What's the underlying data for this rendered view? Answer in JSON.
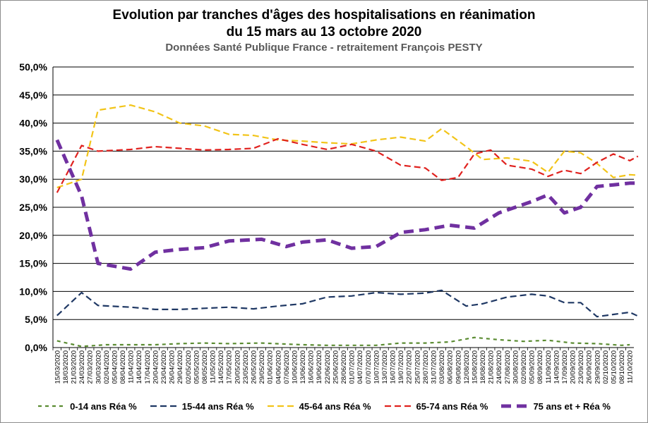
{
  "chart_data": {
    "type": "line",
    "title": "Evolution par tranches d'âges des hospitalisations en réanimation",
    "title_line2": "du 15 mars au 13 octobre 2020",
    "subtitle": "Données Santé Publique France - retraitement François PESTY",
    "ylim": [
      0,
      50
    ],
    "yticks": [
      "0,0%",
      "5,0%",
      "10,0%",
      "15,0%",
      "20,0%",
      "25,0%",
      "30,0%",
      "35,0%",
      "40,0%",
      "45,0%",
      "50,0%"
    ],
    "grid": true,
    "legend_position": "bottom",
    "categories": [
      "15/03/2020",
      "18/03/2020",
      "21/03/2020",
      "24/03/2020",
      "27/03/2020",
      "30/03/2020",
      "02/04/2020",
      "05/04/2020",
      "08/04/2020",
      "11/04/2020",
      "14/04/2020",
      "17/04/2020",
      "20/04/2020",
      "23/04/2020",
      "26/04/2020",
      "29/04/2020",
      "02/05/2020",
      "05/05/2020",
      "08/05/2020",
      "11/05/2020",
      "14/05/2020",
      "17/05/2020",
      "20/05/2020",
      "23/05/2020",
      "26/05/2020",
      "29/05/2020",
      "01/06/2020",
      "04/06/2020",
      "07/06/2020",
      "10/06/2020",
      "13/06/2020",
      "16/06/2020",
      "19/06/2020",
      "22/06/2020",
      "25/06/2020",
      "28/06/2020",
      "01/07/2020",
      "04/07/2020",
      "07/07/2020",
      "10/07/2020",
      "13/07/2020",
      "16/07/2020",
      "19/07/2020",
      "22/07/2020",
      "25/07/2020",
      "28/07/2020",
      "31/07/2020",
      "03/08/2020",
      "06/08/2020",
      "09/08/2020",
      "12/08/2020",
      "15/08/2020",
      "18/08/2020",
      "21/08/2020",
      "24/08/2020",
      "27/08/2020",
      "30/08/2020",
      "02/09/2020",
      "05/09/2020",
      "08/09/2020",
      "11/09/2020",
      "14/09/2020",
      "17/09/2020",
      "20/09/2020",
      "23/09/2020",
      "26/09/2020",
      "29/09/2020",
      "02/10/2020",
      "05/10/2020",
      "08/10/2020",
      "11/10/2020"
    ],
    "series": [
      {
        "name": "0-14 ans Réa %",
        "color": "#5b8c32",
        "dash": "5,5",
        "width": 2.2,
        "points": [
          [
            0,
            1.2
          ],
          [
            3,
            0.2
          ],
          [
            6,
            0.5
          ],
          [
            12,
            0.5
          ],
          [
            15,
            0.7
          ],
          [
            18,
            0.8
          ],
          [
            21,
            0.7
          ],
          [
            25,
            0.8
          ],
          [
            30,
            0.5
          ],
          [
            33,
            0.4
          ],
          [
            36,
            0.4
          ],
          [
            39,
            0.4
          ],
          [
            42,
            0.8
          ],
          [
            45,
            0.8
          ],
          [
            48,
            1.0
          ],
          [
            51,
            1.8
          ],
          [
            54,
            1.4
          ],
          [
            57,
            1.1
          ],
          [
            60,
            1.3
          ],
          [
            63,
            0.8
          ],
          [
            66,
            0.7
          ],
          [
            69,
            0.4
          ],
          [
            70,
            0.5
          ]
        ]
      },
      {
        "name": "15-44 ans Réa %",
        "color": "#1f3864",
        "dash": "9,5",
        "width": 2.2,
        "points": [
          [
            0,
            5.7
          ],
          [
            3,
            9.8
          ],
          [
            5,
            7.5
          ],
          [
            9,
            7.2
          ],
          [
            12,
            6.8
          ],
          [
            15,
            6.8
          ],
          [
            18,
            7.0
          ],
          [
            21,
            7.2
          ],
          [
            24,
            6.9
          ],
          [
            27,
            7.4
          ],
          [
            30,
            7.8
          ],
          [
            33,
            9.0
          ],
          [
            36,
            9.2
          ],
          [
            39,
            9.8
          ],
          [
            42,
            9.5
          ],
          [
            45,
            9.7
          ],
          [
            47,
            10.2
          ],
          [
            50,
            7.4
          ],
          [
            52,
            7.8
          ],
          [
            55,
            9.0
          ],
          [
            58,
            9.5
          ],
          [
            60,
            9.2
          ],
          [
            62,
            8.0
          ],
          [
            64,
            8.0
          ],
          [
            66,
            5.5
          ],
          [
            68,
            5.9
          ],
          [
            70,
            6.3
          ],
          [
            71,
            5.6
          ]
        ]
      },
      {
        "name": "45-64 ans Réa %",
        "color": "#f2c418",
        "dash": "9,5",
        "width": 2.2,
        "points": [
          [
            0,
            28.5
          ],
          [
            3,
            30.0
          ],
          [
            5,
            42.3
          ],
          [
            9,
            43.2
          ],
          [
            12,
            42.0
          ],
          [
            15,
            40.0
          ],
          [
            18,
            39.5
          ],
          [
            21,
            38.0
          ],
          [
            24,
            37.8
          ],
          [
            27,
            37.0
          ],
          [
            30,
            36.8
          ],
          [
            33,
            36.5
          ],
          [
            36,
            36.3
          ],
          [
            39,
            37.0
          ],
          [
            42,
            37.5
          ],
          [
            45,
            36.8
          ],
          [
            47,
            39.0
          ],
          [
            50,
            35.8
          ],
          [
            52,
            33.5
          ],
          [
            55,
            33.8
          ],
          [
            58,
            33.2
          ],
          [
            60,
            31.2
          ],
          [
            62,
            35.0
          ],
          [
            64,
            34.7
          ],
          [
            66,
            32.8
          ],
          [
            68,
            30.3
          ],
          [
            70,
            30.8
          ],
          [
            71,
            30.7
          ]
        ]
      },
      {
        "name": "65-74 ans Réa %",
        "color": "#e0221f",
        "dash": "9,5",
        "width": 2.2,
        "points": [
          [
            0,
            27.6
          ],
          [
            3,
            36.0
          ],
          [
            5,
            35.0
          ],
          [
            9,
            35.3
          ],
          [
            12,
            35.8
          ],
          [
            15,
            35.5
          ],
          [
            18,
            35.2
          ],
          [
            21,
            35.3
          ],
          [
            24,
            35.5
          ],
          [
            27,
            37.2
          ],
          [
            30,
            36.2
          ],
          [
            33,
            35.3
          ],
          [
            36,
            36.2
          ],
          [
            39,
            35.0
          ],
          [
            42,
            32.5
          ],
          [
            45,
            32.0
          ],
          [
            47,
            29.8
          ],
          [
            49,
            30.3
          ],
          [
            51,
            34.5
          ],
          [
            53,
            35.2
          ],
          [
            55,
            32.5
          ],
          [
            58,
            31.8
          ],
          [
            60,
            30.5
          ],
          [
            62,
            31.6
          ],
          [
            64,
            31.0
          ],
          [
            66,
            33.0
          ],
          [
            68,
            34.5
          ],
          [
            70,
            33.3
          ],
          [
            71,
            34.1
          ]
        ]
      },
      {
        "name": "75 ans et + Réa %",
        "color": "#7030a0",
        "dash": "14,8",
        "width": 5,
        "points": [
          [
            0,
            37.0
          ],
          [
            3,
            27.0
          ],
          [
            5,
            15.0
          ],
          [
            9,
            14.0
          ],
          [
            12,
            17.0
          ],
          [
            15,
            17.5
          ],
          [
            18,
            17.8
          ],
          [
            21,
            19.0
          ],
          [
            25,
            19.3
          ],
          [
            28,
            18.0
          ],
          [
            30,
            18.8
          ],
          [
            33,
            19.2
          ],
          [
            36,
            17.7
          ],
          [
            39,
            18.0
          ],
          [
            42,
            20.5
          ],
          [
            45,
            21.0
          ],
          [
            48,
            21.8
          ],
          [
            51,
            21.3
          ],
          [
            54,
            24.0
          ],
          [
            58,
            26.0
          ],
          [
            60,
            27.2
          ],
          [
            62,
            24.0
          ],
          [
            64,
            25.0
          ],
          [
            66,
            28.7
          ],
          [
            68,
            29.0
          ],
          [
            70,
            29.3
          ],
          [
            71,
            29.3
          ]
        ]
      }
    ]
  }
}
